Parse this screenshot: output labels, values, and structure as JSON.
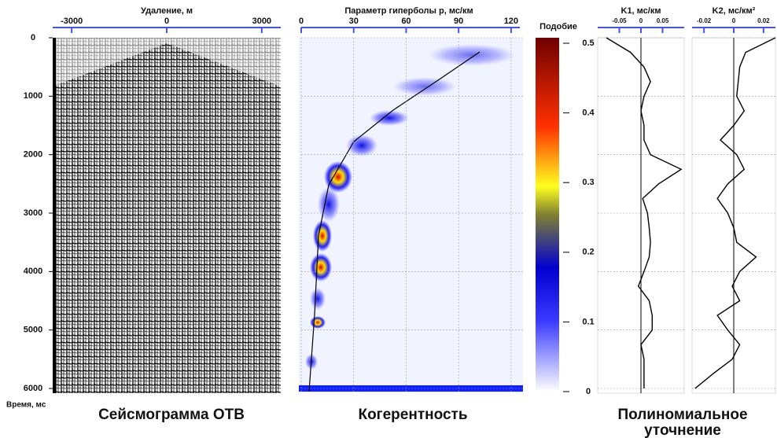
{
  "time_axis": {
    "label": "Время, мс",
    "ylim": [
      0,
      6000
    ],
    "yticks": [
      0,
      1000,
      2000,
      3000,
      4000,
      5000,
      6000
    ]
  },
  "seismogram": {
    "title": "Удаление, м",
    "xlim": [
      -3600,
      3600
    ],
    "xticks": [
      -3000,
      0,
      3000
    ],
    "caption": "Сейсмограмма ОТВ"
  },
  "coherence": {
    "title": "Параметр гиперболы p, мс/км",
    "xlim": [
      0,
      125
    ],
    "xticks": [
      0,
      30,
      60,
      90,
      120
    ],
    "caption": "Когерентность"
  },
  "colorbar": {
    "title": "Подобие",
    "ylim": [
      0,
      0.5
    ],
    "yticks": [
      0,
      0.1,
      0.2,
      0.3,
      0.4,
      0.5
    ]
  },
  "refinement": {
    "caption_lines": [
      "Полиномиальное",
      "уточнение"
    ],
    "times": [
      0,
      250,
      500,
      750,
      1000,
      1250,
      1500,
      1750,
      2000,
      2250,
      2500,
      2750,
      3000,
      3250,
      3500,
      3750,
      4000,
      4250,
      4500,
      4750,
      5000,
      5250,
      5500,
      5750,
      6000
    ],
    "k1": {
      "title": "K1, мс/км",
      "xlim": [
        -0.1,
        0.1
      ],
      "xticks": [
        -0.05,
        0,
        0.05
      ],
      "values": [
        -0.08,
        -0.024,
        0.007,
        0.022,
        0.007,
        0,
        0.007,
        0.007,
        0.022,
        0.093,
        0.041,
        0.004,
        0.015,
        0.019,
        0.022,
        0.019,
        0.007,
        -0.006,
        0.019,
        0.026,
        0.026,
        0,
        0.007,
        0.007,
        0.007
      ]
    },
    "k2": {
      "title": "K2, мс/км²",
      "xlim": [
        -0.028,
        0.028
      ],
      "xticks": [
        -0.02,
        0,
        0.02
      ],
      "values": [
        0.028,
        0.008,
        0.004,
        0.003,
        0.002,
        0.007,
        0,
        -0.009,
        0.002,
        0.007,
        -0.004,
        -0.011,
        -0.004,
        0,
        0.002,
        0.015,
        0.004,
        -0.001,
        0.004,
        -0.011,
        -0.004,
        0.004,
        -0.001,
        -0.014,
        -0.026
      ]
    }
  }
}
